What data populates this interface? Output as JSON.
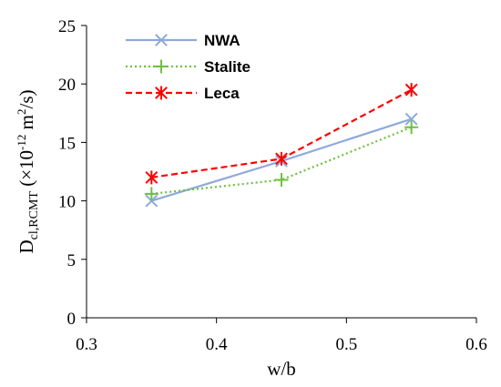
{
  "chart_data": {
    "type": "line",
    "x": [
      0.35,
      0.45,
      0.55
    ],
    "series": [
      {
        "name": "NWA",
        "values": [
          10.0,
          13.4,
          17.0
        ],
        "color": "#8eaadb",
        "dash": "solid",
        "marker": "x"
      },
      {
        "name": "Stalite",
        "values": [
          10.6,
          11.8,
          16.3
        ],
        "color": "#70c040",
        "dash": "dotted",
        "marker": "plus"
      },
      {
        "name": "Leca",
        "values": [
          12.0,
          13.6,
          19.5
        ],
        "color": "#ff0000",
        "dash": "dashed",
        "marker": "asterisk"
      }
    ],
    "xlabel": "w/b",
    "ylabel": {
      "main": "D",
      "sub": "cl,RCMT",
      "pre": " (×10",
      "exp": "-12",
      "mid": " m",
      "exp2": "2",
      "post": "/s)"
    },
    "xlim": [
      0.3,
      0.6
    ],
    "ylim": [
      0,
      25
    ],
    "xticks": [
      "0.3",
      "0.4",
      "0.5",
      "0.6"
    ],
    "yticks": [
      "0",
      "5",
      "10",
      "15",
      "20",
      "25"
    ],
    "grid": false,
    "legend_position": "top-left"
  }
}
